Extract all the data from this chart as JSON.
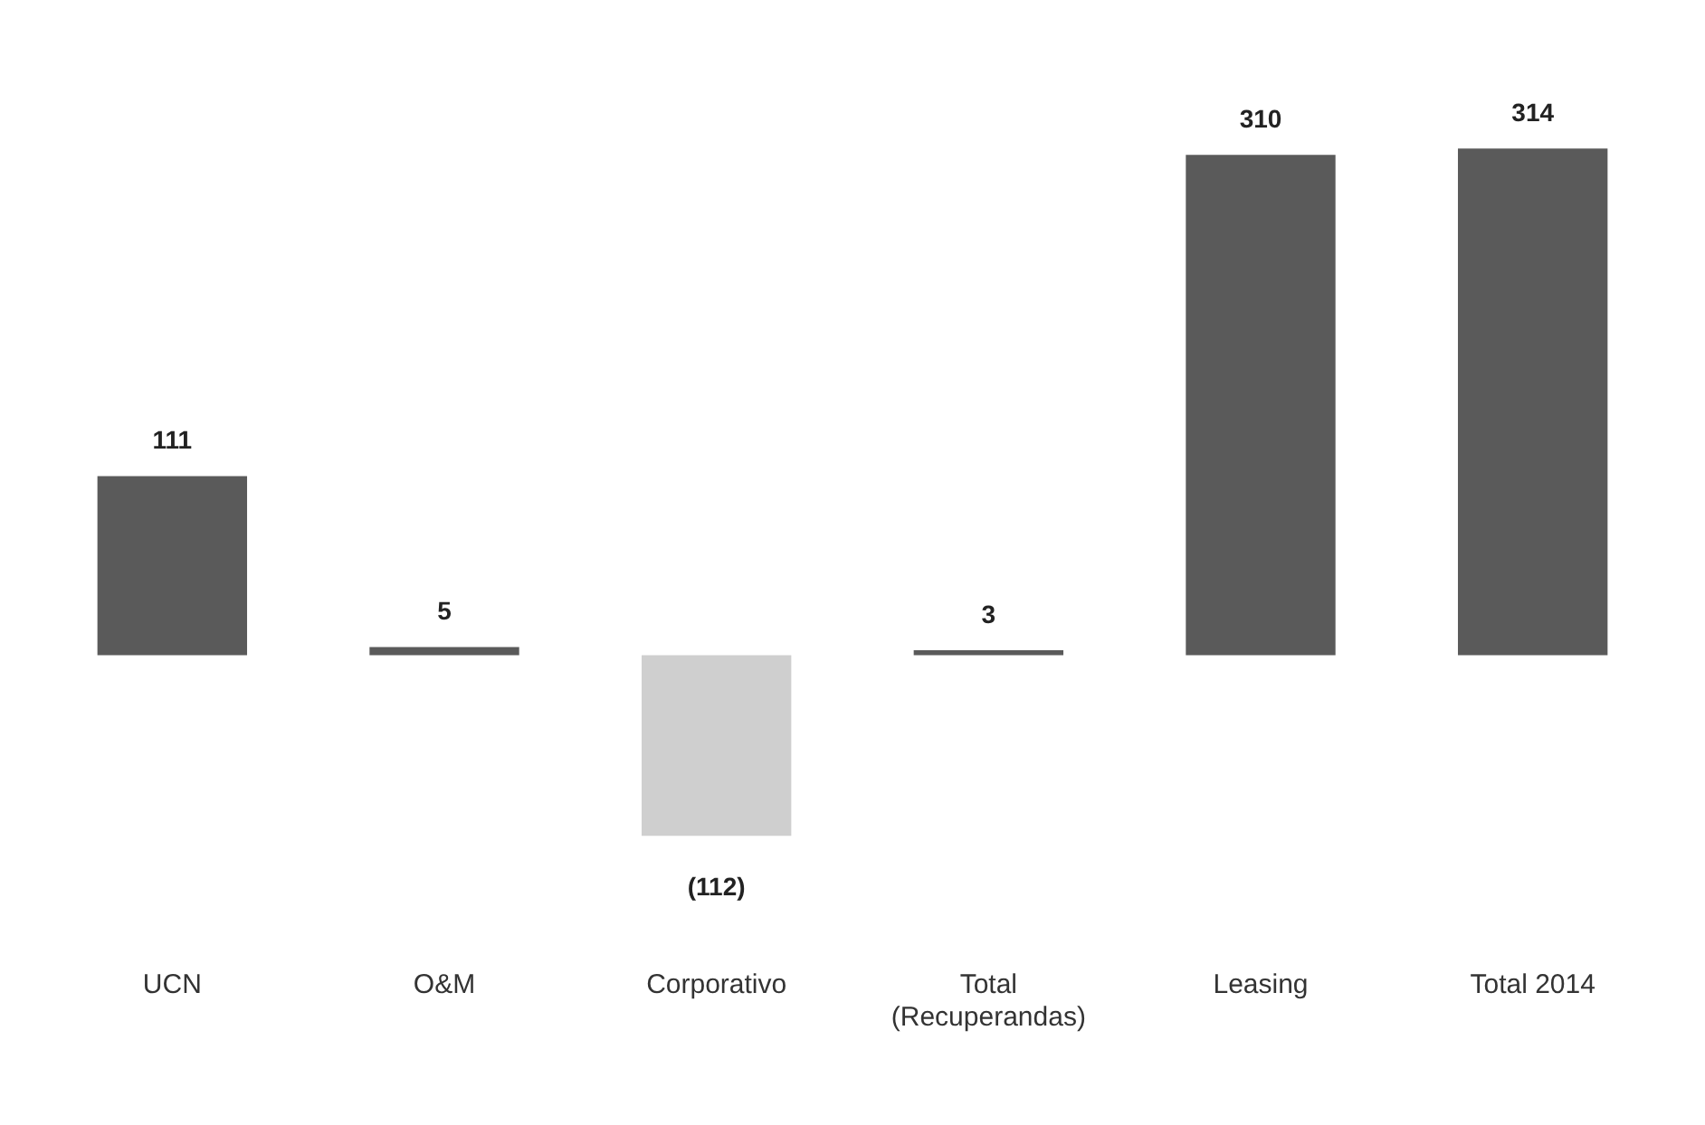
{
  "chart_data": {
    "type": "bar",
    "categories": [
      "UCN",
      "O&M",
      "Corporativo",
      "Total (Recuperandas)",
      "Leasing",
      "Total 2014"
    ],
    "values": [
      111,
      5,
      -112,
      3,
      310,
      314
    ],
    "colors": [
      "#5a5a5a",
      "#5a5a5a",
      "#cfcfcf",
      "#5a5a5a",
      "#5a5a5a",
      "#5a5a5a"
    ],
    "value_labels": [
      "111",
      "5",
      "(112)",
      "3",
      "310",
      "314"
    ],
    "grid": false,
    "legend": false
  }
}
